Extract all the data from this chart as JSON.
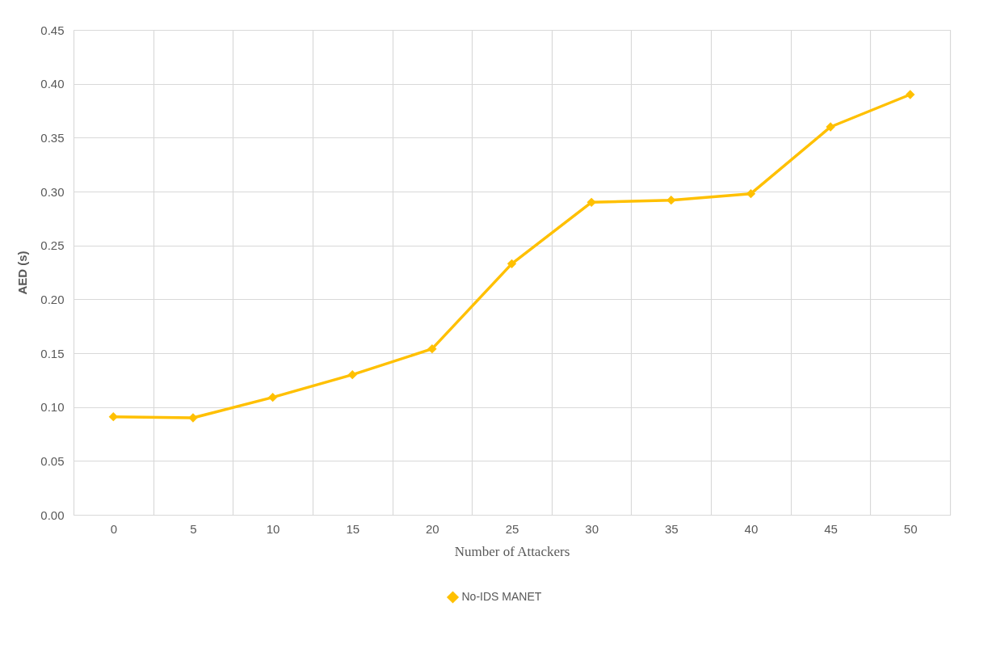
{
  "chart_data": {
    "type": "line",
    "xlabel": "Number of Attackers",
    "ylabel": "AED (s)",
    "categories": [
      "0",
      "5",
      "10",
      "15",
      "20",
      "25",
      "30",
      "35",
      "40",
      "45",
      "50"
    ],
    "series": [
      {
        "name": "No-IDS MANET",
        "color": "#ffc000",
        "values": [
          0.091,
          0.09,
          0.109,
          0.13,
          0.154,
          0.233,
          0.29,
          0.292,
          0.298,
          0.36,
          0.39
        ]
      }
    ],
    "ylim": [
      0,
      0.45
    ],
    "yticks": [
      {
        "value": 0,
        "label": "0.00"
      },
      0.05,
      {
        "value": 0.1,
        "label": "0.10"
      },
      0.15,
      {
        "value": 0.2,
        "label": "0.20"
      },
      0.25,
      {
        "value": 0.3,
        "label": "0.30"
      },
      0.35,
      {
        "value": 0.4,
        "label": "0.40"
      },
      0.45
    ],
    "grid": true,
    "legend": "bottom",
    "marker": "diamond",
    "line_style": "solid"
  }
}
